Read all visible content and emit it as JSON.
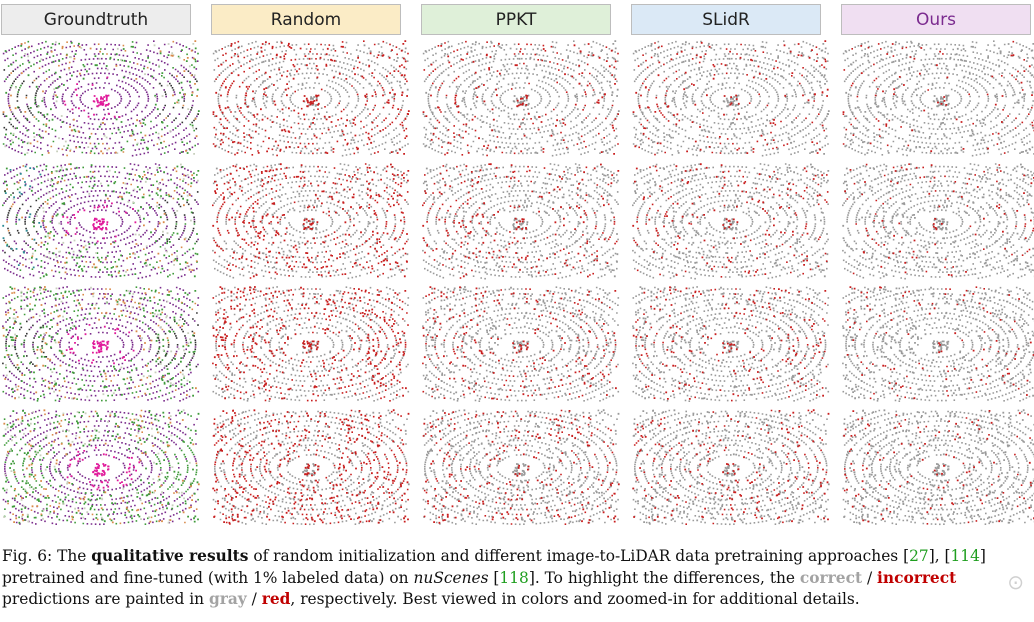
{
  "columns": [
    "Groundtruth",
    "Random",
    "PPKT",
    "SLidR",
    "Ours"
  ],
  "rows": 4,
  "colors": {
    "correct": "#9a9a9a",
    "incorrect": "#c81e1e",
    "road": "#7a2b8b",
    "car": "#e0199a",
    "vegetation": "#3f9a3a",
    "building": "#c8cfbd",
    "sidewalk": "#333333",
    "truck": "#2c8a94",
    "terrain": "#d98a4a"
  },
  "caption": {
    "p1": "Fig. 6: The ",
    "b1": "qualitative results",
    "p2": " of random initialization and different image-to-LiDAR data pretraining approaches [",
    "c1": "27",
    "p3": "], [",
    "c2": "114",
    "p4": "] pretrained and fine-tuned (with 1% labeled data) on ",
    "i1": "nuScenes",
    "p5": " [",
    "c3": "118",
    "p6": "]. To highlight the differences, the ",
    "w1": "correct",
    "p7": " / ",
    "w2": "incorrect",
    "p8": " predictions are painted in ",
    "w3": "gray",
    "p9": " / ",
    "w4": "red",
    "p10": ", respectively. Best viewed in colors and zoomed-in for additional details."
  }
}
